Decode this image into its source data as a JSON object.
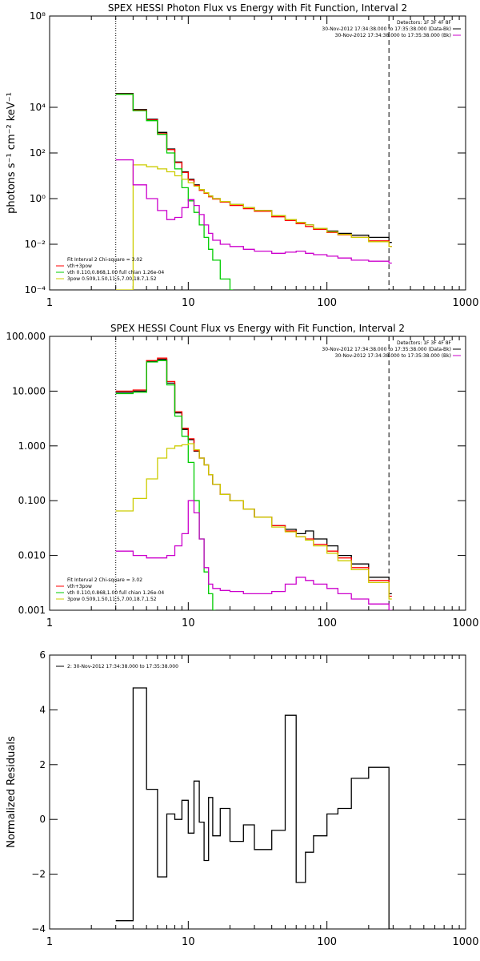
{
  "chart_data": [
    {
      "type": "line",
      "title": "SPEX HESSI Photon Flux vs Energy with Fit Function, Interval 2",
      "ylabel": "photons s⁻¹ cm⁻² keV⁻¹",
      "xlabel": "",
      "xscale": "log",
      "yscale": "log",
      "xlim": [
        1,
        1000
      ],
      "ylim": [
        0.0001,
        100000000
      ],
      "x_ticks": [
        {
          "value": 1,
          "label": "1"
        },
        {
          "value": 10,
          "label": "10"
        },
        {
          "value": 100,
          "label": "100"
        },
        {
          "value": 1000,
          "label": "1000"
        }
      ],
      "y_ticks": [
        {
          "value": 0.0001,
          "label": "10⁻⁴"
        },
        {
          "value": 0.01,
          "label": "10⁻²"
        },
        {
          "value": 1,
          "label": "10⁰"
        },
        {
          "value": 100,
          "label": "10²"
        },
        {
          "value": 10000,
          "label": "10⁴"
        },
        {
          "value": 100000000,
          "label": "10⁸"
        }
      ],
      "vlines": [
        {
          "x": 3,
          "style": "dotted"
        },
        {
          "x": 280,
          "style": "dashed"
        }
      ],
      "legend_topright": [
        {
          "text": "Detectors: 1F 3F 4F 8F",
          "color": "#000000",
          "line": false
        },
        {
          "text": "30-Nov-2012 17:34:38.000 to 17:35:38.000 (Data-Bk)",
          "color": "#000000",
          "line": true
        },
        {
          "text": "30-Nov-2012 17:34:38.000 to 17:35:38.000 (Bk)",
          "color": "#cc00cc",
          "line": true
        }
      ],
      "legend_bottomleft": [
        {
          "text": "Fit Interval  2   Chi-square = 3.02",
          "color": "#000000",
          "line": false
        },
        {
          "text": "vth+3pow",
          "color": "#ff0000",
          "line": true
        },
        {
          "text": "vth 0.110,0.868,1.00  full chian 1.26e-04",
          "color": "#00cc00",
          "line": true
        },
        {
          "text": "3pow 0.509,1.50,11.5,7.00,18.7,1.52",
          "color": "#cccc00",
          "line": true
        }
      ],
      "series": [
        {
          "color": "#000000",
          "x": [
            3,
            4,
            5,
            6,
            7,
            8,
            9,
            10,
            11,
            12,
            13,
            14,
            15,
            17,
            20,
            25,
            30,
            40,
            50,
            60,
            70,
            80,
            100,
            120,
            150,
            200,
            280
          ],
          "y": [
            40000,
            8000,
            3000,
            800,
            150,
            40,
            15,
            7,
            4,
            2.5,
            1.8,
            1.3,
            1.0,
            0.75,
            0.55,
            0.4,
            0.3,
            0.18,
            0.12,
            0.09,
            0.07,
            0.05,
            0.038,
            0.03,
            0.025,
            0.02,
            0.012
          ]
        },
        {
          "color": "#ff0000",
          "x": [
            3,
            4,
            5,
            6,
            7,
            8,
            9,
            10,
            11,
            12,
            13,
            14,
            15,
            17,
            20,
            25,
            30,
            40,
            50,
            60,
            70,
            80,
            100,
            120,
            150,
            200,
            280
          ],
          "y": [
            38000,
            7500,
            2800,
            700,
            140,
            38,
            14,
            6.5,
            3.8,
            2.3,
            1.7,
            1.2,
            0.95,
            0.7,
            0.5,
            0.36,
            0.28,
            0.16,
            0.11,
            0.08,
            0.06,
            0.045,
            0.033,
            0.026,
            0.02,
            0.014,
            0.008
          ]
        },
        {
          "color": "#00cc00",
          "x": [
            3,
            4,
            5,
            6,
            7,
            8,
            9,
            10,
            11,
            12,
            13,
            14,
            15,
            17,
            20
          ],
          "y": [
            37000,
            7000,
            2600,
            650,
            100,
            20,
            3,
            0.8,
            0.25,
            0.07,
            0.02,
            0.006,
            0.002,
            0.0003,
            0.0001
          ]
        },
        {
          "color": "#cccc00",
          "x": [
            3,
            4,
            5,
            6,
            7,
            8,
            9,
            10,
            11,
            12,
            13,
            14,
            15,
            17,
            20,
            25,
            30,
            40,
            50,
            60,
            70,
            80,
            100,
            120,
            150,
            200,
            280
          ],
          "y": [
            0.0001,
            30,
            25,
            20,
            15,
            10,
            7,
            5,
            3.5,
            2.5,
            1.8,
            1.3,
            1.0,
            0.75,
            0.55,
            0.4,
            0.3,
            0.18,
            0.12,
            0.09,
            0.07,
            0.05,
            0.035,
            0.027,
            0.02,
            0.013,
            0.008
          ]
        },
        {
          "color": "#cc00cc",
          "x": [
            3,
            4,
            5,
            6,
            7,
            8,
            9,
            10,
            11,
            12,
            13,
            14,
            15,
            17,
            20,
            25,
            30,
            40,
            50,
            60,
            70,
            80,
            100,
            120,
            150,
            200,
            280
          ],
          "y": [
            50,
            4,
            1.0,
            0.3,
            0.12,
            0.15,
            0.4,
            0.9,
            0.5,
            0.2,
            0.07,
            0.03,
            0.015,
            0.01,
            0.008,
            0.006,
            0.005,
            0.004,
            0.0045,
            0.005,
            0.004,
            0.0035,
            0.003,
            0.0025,
            0.002,
            0.0018,
            0.0015
          ]
        }
      ]
    },
    {
      "type": "line",
      "title": "SPEX HESSI Count Flux vs Energy with Fit Function, Interval 2",
      "ylabel": "",
      "xlabel": "",
      "xscale": "log",
      "yscale": "log",
      "xlim": [
        1,
        1000
      ],
      "ylim": [
        0.001,
        100
      ],
      "x_ticks": [
        {
          "value": 1,
          "label": "1"
        },
        {
          "value": 10,
          "label": "10"
        },
        {
          "value": 100,
          "label": "100"
        },
        {
          "value": 1000,
          "label": "1000"
        }
      ],
      "y_ticks": [
        {
          "value": 0.001,
          "label": "0.001"
        },
        {
          "value": 0.01,
          "label": "0.010"
        },
        {
          "value": 0.1,
          "label": "0.100"
        },
        {
          "value": 1,
          "label": "1.000"
        },
        {
          "value": 10,
          "label": "10.000"
        },
        {
          "value": 100,
          "label": "100.000"
        }
      ],
      "vlines": [
        {
          "x": 3,
          "style": "dotted"
        },
        {
          "x": 280,
          "style": "dashed"
        }
      ],
      "legend_topright": [
        {
          "text": "Detectors: 1F 3F 4F 8F",
          "color": "#000000",
          "line": false
        },
        {
          "text": "30-Nov-2012 17:34:38.000 to 17:35:38.000 (Data-Bk)",
          "color": "#000000",
          "line": true
        },
        {
          "text": "30-Nov-2012 17:34:38.000 to 17:35:38.000 (Bk)",
          "color": "#cc00cc",
          "line": true
        }
      ],
      "legend_bottomleft": [
        {
          "text": "Fit Interval  2   Chi-square = 3.02",
          "color": "#000000",
          "line": false
        },
        {
          "text": "vth+3pow",
          "color": "#ff0000",
          "line": true
        },
        {
          "text": "vth 0.110,0.868,1.00  full chian 1.26e-04",
          "color": "#00cc00",
          "line": true
        },
        {
          "text": "3pow 0.509,1.50,11.5,7.00,18.7,1.52",
          "color": "#cccc00",
          "line": true
        }
      ],
      "series": [
        {
          "color": "#000000",
          "x": [
            3,
            4,
            5,
            6,
            7,
            8,
            9,
            10,
            11,
            12,
            13,
            14,
            15,
            17,
            20,
            25,
            30,
            40,
            50,
            60,
            70,
            80,
            100,
            120,
            150,
            200,
            280
          ],
          "y": [
            9.5,
            10,
            35,
            38,
            14,
            4,
            2,
            1.3,
            0.8,
            0.6,
            0.45,
            0.3,
            0.2,
            0.13,
            0.1,
            0.07,
            0.05,
            0.035,
            0.03,
            0.025,
            0.028,
            0.02,
            0.015,
            0.01,
            0.007,
            0.004,
            0.002
          ]
        },
        {
          "color": "#ff0000",
          "x": [
            3,
            4,
            5,
            6,
            7,
            8,
            9,
            10,
            11,
            12,
            13,
            14,
            15,
            17,
            20,
            25,
            30,
            40,
            50,
            60,
            70,
            80,
            100,
            120,
            150,
            200,
            280
          ],
          "y": [
            10,
            10.5,
            36,
            40,
            15,
            4.2,
            2.1,
            1.35,
            0.82,
            0.6,
            0.45,
            0.3,
            0.2,
            0.13,
            0.1,
            0.07,
            0.05,
            0.035,
            0.028,
            0.022,
            0.02,
            0.016,
            0.012,
            0.009,
            0.006,
            0.0035,
            0.0018
          ]
        },
        {
          "color": "#00cc00",
          "x": [
            3,
            4,
            5,
            6,
            7,
            8,
            9,
            10,
            11,
            12,
            13,
            14,
            15
          ],
          "y": [
            9,
            9.5,
            34,
            36,
            13,
            3.5,
            1.5,
            0.5,
            0.1,
            0.02,
            0.005,
            0.002,
            0.001
          ]
        },
        {
          "color": "#cccc00",
          "x": [
            3,
            4,
            5,
            6,
            7,
            8,
            9,
            10,
            11,
            12,
            13,
            14,
            15,
            17,
            20,
            25,
            30,
            40,
            50,
            60,
            70,
            80,
            100,
            120,
            150,
            200,
            280
          ],
          "y": [
            0.065,
            0.11,
            0.25,
            0.6,
            0.9,
            1.0,
            1.05,
            1.1,
            0.85,
            0.6,
            0.45,
            0.3,
            0.2,
            0.13,
            0.1,
            0.07,
            0.05,
            0.033,
            0.027,
            0.022,
            0.019,
            0.015,
            0.011,
            0.008,
            0.0055,
            0.0032,
            0.0016
          ]
        },
        {
          "color": "#cc00cc",
          "x": [
            3,
            4,
            5,
            6,
            7,
            8,
            9,
            10,
            11,
            12,
            13,
            14,
            15,
            17,
            20,
            25,
            30,
            40,
            50,
            60,
            70,
            80,
            100,
            120,
            150,
            200,
            280
          ],
          "y": [
            0.012,
            0.01,
            0.009,
            0.009,
            0.01,
            0.015,
            0.025,
            0.1,
            0.06,
            0.02,
            0.006,
            0.003,
            0.0025,
            0.0023,
            0.0022,
            0.002,
            0.002,
            0.0022,
            0.003,
            0.004,
            0.0035,
            0.003,
            0.0025,
            0.002,
            0.0016,
            0.0013,
            0.001
          ]
        }
      ]
    },
    {
      "type": "line",
      "title": "",
      "ylabel": "Normalized Residuals",
      "xlabel": "",
      "xscale": "log",
      "yscale": "linear",
      "xlim": [
        1,
        1000
      ],
      "ylim": [
        -4,
        6
      ],
      "x_ticks": [
        {
          "value": 1,
          "label": "1"
        },
        {
          "value": 10,
          "label": "10"
        },
        {
          "value": 100,
          "label": "100"
        },
        {
          "value": 1000,
          "label": "1000"
        }
      ],
      "y_ticks": [
        {
          "value": -4,
          "label": "−4"
        },
        {
          "value": -2,
          "label": "−2"
        },
        {
          "value": 0,
          "label": "0"
        },
        {
          "value": 2,
          "label": "2"
        },
        {
          "value": 4,
          "label": "4"
        },
        {
          "value": 6,
          "label": "6"
        }
      ],
      "legend_topleft": [
        {
          "text": "2: 30-Nov-2012 17:34:38.000 to 17:35:38.000",
          "color": "#000000",
          "line": true
        }
      ],
      "series": [
        {
          "color": "#000000",
          "x": [
            3,
            4,
            5,
            6,
            7,
            8,
            9,
            10,
            11,
            12,
            13,
            14,
            15,
            17,
            20,
            25,
            30,
            40,
            50,
            60,
            70,
            80,
            100,
            120,
            150,
            200,
            280
          ],
          "y": [
            -3.7,
            4.8,
            1.1,
            -2.1,
            0.2,
            0.0,
            0.7,
            -0.5,
            1.4,
            -0.1,
            -1.5,
            0.8,
            -0.6,
            0.4,
            -0.8,
            -0.2,
            -1.1,
            -0.4,
            3.8,
            -2.3,
            -1.2,
            -0.6,
            0.2,
            0.4,
            1.5,
            1.9,
            -4
          ]
        }
      ]
    }
  ]
}
